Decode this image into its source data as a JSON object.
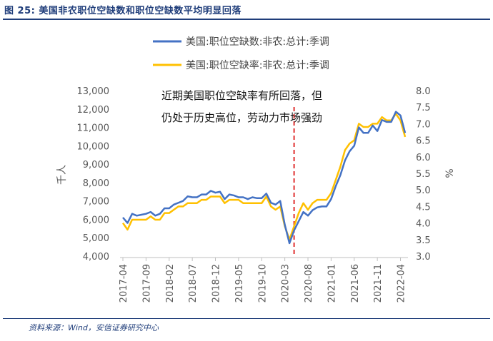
{
  "figure_label": "图 25:",
  "figure_title": "美国非农职位空缺数和职位空缺数平均明显回落",
  "source": "资料来源：Wind，安信证券研究中心",
  "colors": {
    "openings": "#4472c4",
    "rate": "#ffc000",
    "divider": "#e03030",
    "axis_text": "#595959"
  },
  "chart_data": {
    "type": "line",
    "title": "美国非农职位空缺数和职位空缺数平均明显回落",
    "legend": [
      "美国:职位空缺数:非农:总计:季调",
      "美国:职位空缺率:非农:总计:季调"
    ],
    "annotation": [
      "近期美国职位空缺率有所回落，但",
      "仍处于历史高位，劳动力市场强劲"
    ],
    "left_axis": {
      "label": "千人",
      "ylim": [
        4000,
        13000
      ],
      "ticks": [
        "13,000",
        "12,000",
        "11,000",
        "10,000",
        "9,000",
        "8,000",
        "7,000",
        "6,000",
        "5,000",
        "4,000"
      ]
    },
    "right_axis": {
      "label": "%",
      "ylim": [
        3.0,
        8.0
      ],
      "ticks": [
        "8.0",
        "7.5",
        "7.0",
        "6.5",
        "6.0",
        "5.5",
        "5.0",
        "4.5",
        "4.0",
        "3.5",
        "3.0"
      ]
    },
    "x_tick_labels": [
      "2017-04",
      "2017-09",
      "2018-02",
      "2018-07",
      "2018-12",
      "2019-05",
      "2019-10",
      "2020-03",
      "2020-08",
      "2021-01",
      "2021-06",
      "2021-11",
      "2022-04"
    ],
    "x_tick_index": [
      0,
      5,
      10,
      15,
      20,
      25,
      30,
      35,
      40,
      45,
      50,
      55,
      60
    ],
    "divider_index": 37,
    "series": [
      {
        "name": "美国:职位空缺数:非农:总计:季调",
        "axis": "left",
        "values": [
          6100,
          5800,
          6300,
          6200,
          6250,
          6300,
          6400,
          6200,
          6300,
          6600,
          6600,
          6800,
          6900,
          7000,
          7250,
          7200,
          7200,
          7350,
          7350,
          7550,
          7450,
          7500,
          7100,
          7350,
          7300,
          7200,
          7200,
          7100,
          7200,
          7150,
          7150,
          7400,
          6900,
          6800,
          7000,
          5700,
          4700,
          5400,
          5900,
          6400,
          6200,
          6500,
          6650,
          6700,
          6700,
          7100,
          7800,
          8400,
          9200,
          9700,
          10000,
          11000,
          10700,
          10700,
          11100,
          10800,
          11400,
          11300,
          11300,
          11850,
          11650,
          10700
        ]
      },
      {
        "name": "美国:职位空缺率:非农:总计:季调",
        "axis": "right",
        "values": [
          4.0,
          3.8,
          4.1,
          4.1,
          4.1,
          4.1,
          4.2,
          4.1,
          4.1,
          4.3,
          4.3,
          4.4,
          4.5,
          4.5,
          4.6,
          4.6,
          4.6,
          4.7,
          4.7,
          4.8,
          4.8,
          4.8,
          4.6,
          4.7,
          4.7,
          4.7,
          4.6,
          4.6,
          4.6,
          4.6,
          4.6,
          4.8,
          4.5,
          4.4,
          4.5,
          3.9,
          3.5,
          3.9,
          4.3,
          4.6,
          4.4,
          4.6,
          4.7,
          4.7,
          4.7,
          4.9,
          5.3,
          5.7,
          6.2,
          6.4,
          6.5,
          7.0,
          6.9,
          6.9,
          7.0,
          7.0,
          7.2,
          7.1,
          7.1,
          7.3,
          7.1,
          6.6
        ]
      }
    ]
  }
}
